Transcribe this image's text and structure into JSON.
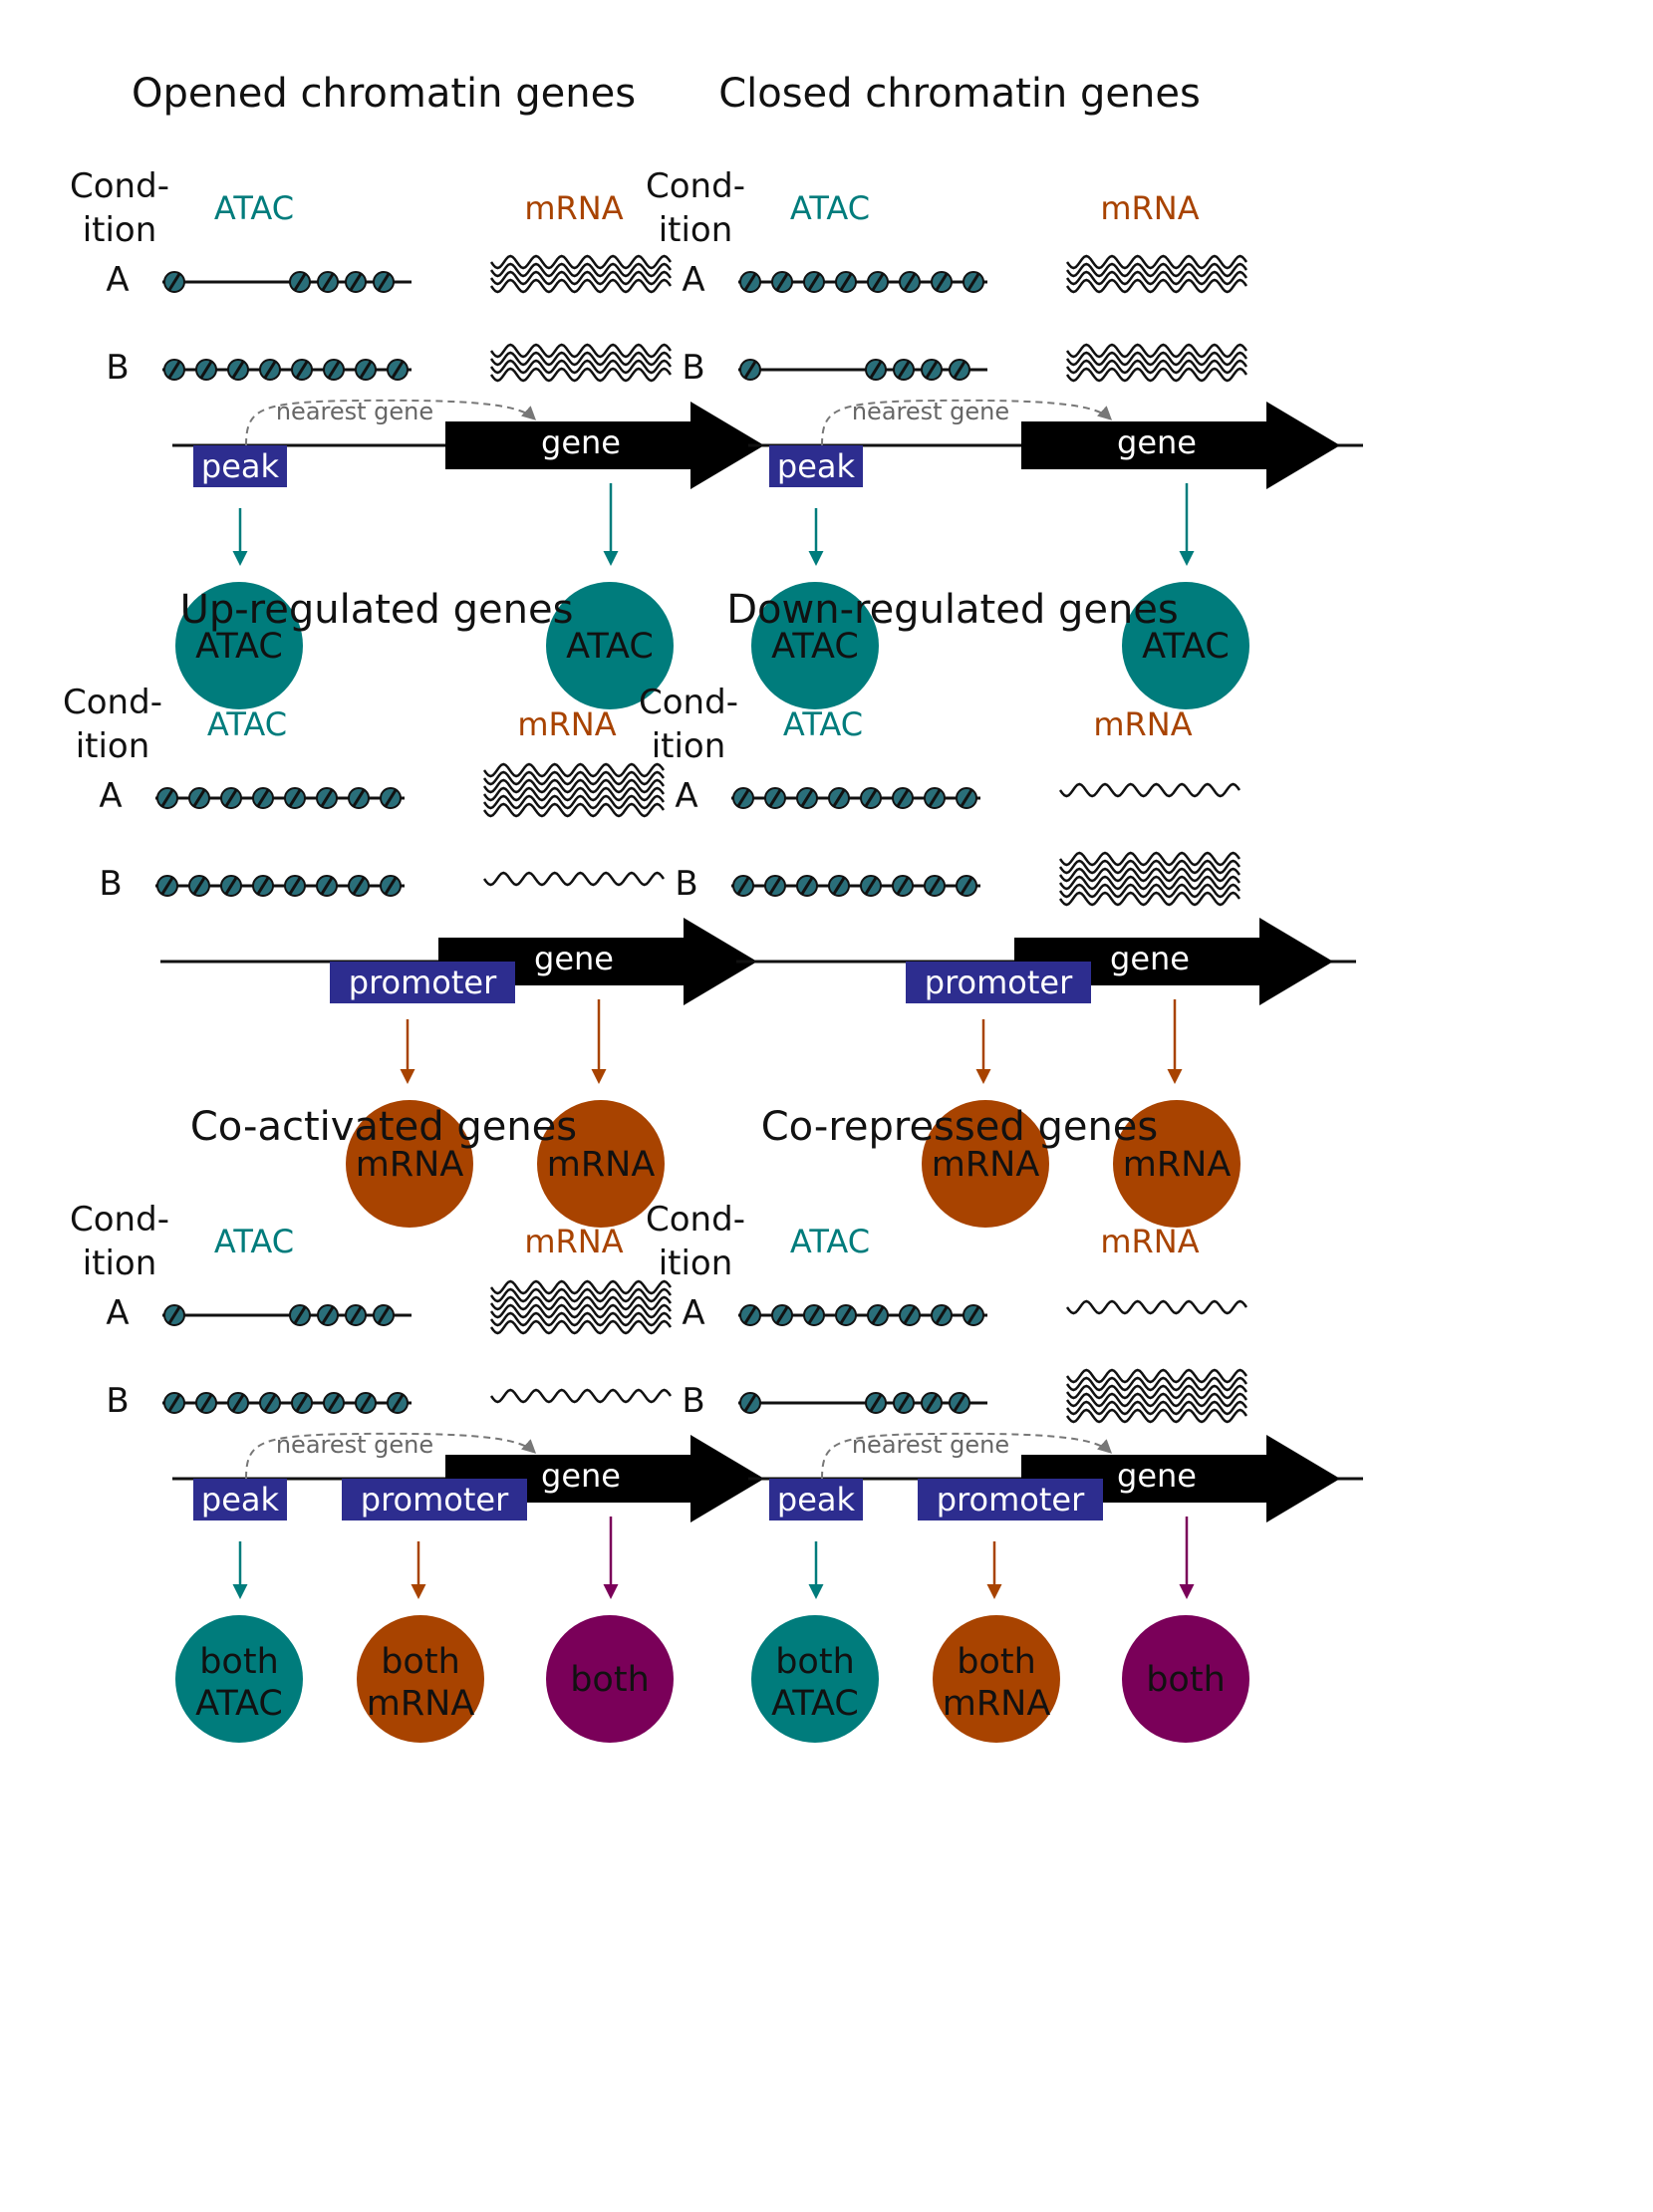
{
  "colors": {
    "teal": "#007C7C",
    "orange": "#A84300",
    "purple": "#7A0059",
    "navy": "#2D2D8F",
    "nucleosome": "#2A6F7A",
    "gray_arrow": "#777777"
  },
  "common": {
    "cond_line1": "Cond-",
    "cond_line2": "ition",
    "cond_a": "A",
    "cond_b": "B",
    "atac": "ATAC",
    "mrna": "mRNA",
    "gene": "gene",
    "peak": "peak",
    "promoter": "promoter",
    "nearest_gene": "nearest gene"
  },
  "panels": [
    {
      "title": "Opened chromatin genes",
      "atac_a": "open",
      "atac_b": "closed",
      "mrna_a": 4,
      "mrna_b": 4,
      "boxes": [
        "peak"
      ],
      "nearest_arrow": true,
      "outputs": [
        {
          "lines": [
            "ATAC"
          ],
          "color": "teal"
        },
        {
          "lines": [
            "ATAC"
          ],
          "color": "teal"
        }
      ]
    },
    {
      "title": "Closed chromatin genes",
      "atac_a": "closed",
      "atac_b": "open",
      "mrna_a": 4,
      "mrna_b": 4,
      "boxes": [
        "peak"
      ],
      "nearest_arrow": true,
      "outputs": [
        {
          "lines": [
            "ATAC"
          ],
          "color": "teal"
        },
        {
          "lines": [
            "ATAC"
          ],
          "color": "teal"
        }
      ]
    },
    {
      "title": "Up-regulated genes",
      "atac_a": "closed",
      "atac_b": "closed",
      "mrna_a": 6,
      "mrna_b": 1,
      "boxes": [
        "promoter"
      ],
      "nearest_arrow": false,
      "outputs": [
        {
          "lines": [
            "mRNA"
          ],
          "color": "orange"
        },
        {
          "lines": [
            "mRNA"
          ],
          "color": "orange"
        }
      ]
    },
    {
      "title": "Down-regulated genes",
      "atac_a": "closed",
      "atac_b": "closed",
      "mrna_a": 1,
      "mrna_b": 6,
      "boxes": [
        "promoter"
      ],
      "nearest_arrow": false,
      "outputs": [
        {
          "lines": [
            "mRNA"
          ],
          "color": "orange"
        },
        {
          "lines": [
            "mRNA"
          ],
          "color": "orange"
        }
      ]
    },
    {
      "title": "Co-activated genes",
      "atac_a": "open",
      "atac_b": "closed",
      "mrna_a": 6,
      "mrna_b": 1,
      "boxes": [
        "peak",
        "promoter"
      ],
      "nearest_arrow": true,
      "outputs": [
        {
          "lines": [
            "both",
            "ATAC"
          ],
          "color": "teal"
        },
        {
          "lines": [
            "both",
            "mRNA"
          ],
          "color": "orange"
        },
        {
          "lines": [
            "both"
          ],
          "color": "purple"
        }
      ]
    },
    {
      "title": "Co-repressed genes",
      "atac_a": "closed",
      "atac_b": "open",
      "mrna_a": 1,
      "mrna_b": 6,
      "boxes": [
        "peak",
        "promoter"
      ],
      "nearest_arrow": true,
      "outputs": [
        {
          "lines": [
            "both",
            "ATAC"
          ],
          "color": "teal"
        },
        {
          "lines": [
            "both",
            "mRNA"
          ],
          "color": "orange"
        },
        {
          "lines": [
            "both"
          ],
          "color": "purple"
        }
      ]
    }
  ]
}
